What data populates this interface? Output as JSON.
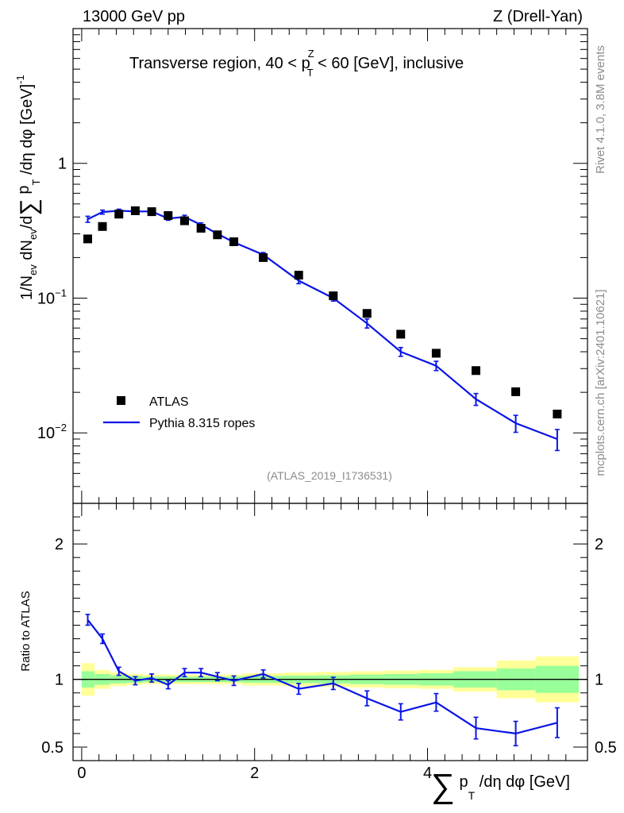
{
  "header": {
    "energy_label": "13000 GeV pp",
    "process_label": "Z (Drell-Yan)",
    "side_rivet": "Rivet 4.1.0,  3.8M events",
    "side_site": "mcplots.cern.ch [arXiv:2401.10621]",
    "analysis_ref": "(ATLAS_2019_I1736531)"
  },
  "chart_data": [
    {
      "type": "scatter",
      "title_parts": [
        "Transverse region, 40 < p",
        "Z",
        "T",
        " < 60 [GeV], inclusive"
      ],
      "ylabel_parts": [
        "1/N",
        "ev",
        " dN",
        "ev",
        "/d",
        "∑",
        " p",
        "T",
        " /dη dφ  [GeV]",
        "-1"
      ],
      "yscale": "log",
      "ylim": [
        0.003,
        10
      ],
      "xlim": [
        -0.1,
        5.85
      ],
      "y_tick_labels": [
        {
          "value": 0.01,
          "base": "10",
          "exp": "−2"
        },
        {
          "value": 0.1,
          "base": "10",
          "exp": "−1"
        },
        {
          "value": 1,
          "base": "1",
          "exp": ""
        }
      ],
      "legend": {
        "position": "bottom-left",
        "data_label": "ATLAS",
        "mc_label": "Pythia 8.315 ropes"
      },
      "series": [
        {
          "name": "ATLAS",
          "style": "markers",
          "color": "#000000",
          "x": [
            0.07,
            0.24,
            0.43,
            0.62,
            0.81,
            1.0,
            1.19,
            1.38,
            1.57,
            1.76,
            2.1,
            2.51,
            2.91,
            3.3,
            3.69,
            4.1,
            4.56,
            5.02,
            5.5
          ],
          "y": [
            0.275,
            0.34,
            0.42,
            0.445,
            0.438,
            0.41,
            0.375,
            0.33,
            0.295,
            0.262,
            0.2,
            0.148,
            0.104,
            0.077,
            0.054,
            0.039,
            0.029,
            0.0202,
            0.0138
          ]
        },
        {
          "name": "Pythia 8.315 ropes",
          "style": "line",
          "color": "#0a14e6",
          "x": [
            0.07,
            0.24,
            0.43,
            0.62,
            0.81,
            1.0,
            1.19,
            1.38,
            1.57,
            1.76,
            2.1,
            2.51,
            2.91,
            3.3,
            3.69,
            4.1,
            4.56,
            5.02,
            5.5
          ],
          "y": [
            0.385,
            0.435,
            0.445,
            0.44,
            0.44,
            0.39,
            0.4,
            0.35,
            0.3,
            0.26,
            0.21,
            0.135,
            0.1,
            0.065,
            0.04,
            0.0315,
            0.0178,
            0.0118,
            0.009
          ],
          "err_lo": [
            0.02,
            0.015,
            0.012,
            0.01,
            0.01,
            0.012,
            0.012,
            0.012,
            0.01,
            0.008,
            0.008,
            0.007,
            0.005,
            0.005,
            0.003,
            0.0025,
            0.0018,
            0.0017,
            0.0016
          ],
          "err_hi": [
            0.02,
            0.015,
            0.012,
            0.01,
            0.01,
            0.012,
            0.012,
            0.012,
            0.01,
            0.008,
            0.008,
            0.007,
            0.005,
            0.005,
            0.003,
            0.0025,
            0.0018,
            0.0017,
            0.0016
          ]
        }
      ]
    },
    {
      "type": "line",
      "ylabel": "Ratio to ATLAS",
      "xlabel_parts": [
        "∑",
        " p",
        "T",
        " /dη dφ [GeV]"
      ],
      "ylim": [
        0.4,
        2.3
      ],
      "xlim": [
        -0.1,
        5.85
      ],
      "y_tick_labels": [
        {
          "value": 0.5,
          "text": "0.5"
        },
        {
          "value": 1,
          "text": "1"
        },
        {
          "value": 2,
          "text": "2"
        }
      ],
      "x_tick_labels": [
        {
          "value": 0,
          "text": "0"
        },
        {
          "value": 2,
          "text": "2"
        },
        {
          "value": 4,
          "text": "4"
        }
      ],
      "reference_line": 1,
      "band_edges": [
        0.0,
        0.15,
        0.33,
        0.52,
        0.71,
        0.9,
        1.1,
        1.29,
        1.48,
        1.67,
        1.86,
        2.33,
        2.7,
        3.1,
        3.5,
        3.9,
        4.3,
        4.8,
        5.25,
        5.75
      ],
      "band_yellow_lo": [
        0.88,
        0.93,
        0.95,
        0.96,
        0.965,
        0.965,
        0.965,
        0.965,
        0.965,
        0.965,
        0.955,
        0.95,
        0.945,
        0.94,
        0.935,
        0.93,
        0.91,
        0.86,
        0.83
      ],
      "band_yellow_hi": [
        1.12,
        1.07,
        1.05,
        1.04,
        1.035,
        1.035,
        1.035,
        1.035,
        1.035,
        1.035,
        1.045,
        1.05,
        1.055,
        1.06,
        1.065,
        1.07,
        1.09,
        1.14,
        1.17
      ],
      "band_green_lo": [
        0.94,
        0.96,
        0.97,
        0.975,
        0.98,
        0.98,
        0.98,
        0.98,
        0.98,
        0.98,
        0.975,
        0.972,
        0.97,
        0.965,
        0.96,
        0.955,
        0.94,
        0.92,
        0.9
      ],
      "band_green_hi": [
        1.06,
        1.04,
        1.03,
        1.025,
        1.02,
        1.02,
        1.02,
        1.02,
        1.02,
        1.02,
        1.025,
        1.028,
        1.03,
        1.035,
        1.04,
        1.045,
        1.06,
        1.08,
        1.1
      ],
      "colors": {
        "yellow": "#ffff99",
        "green": "#99ff99",
        "mc": "#0a14e6"
      },
      "series": [
        {
          "name": "Pythia 8.315 ropes / ATLAS",
          "x": [
            0.07,
            0.24,
            0.43,
            0.62,
            0.81,
            1.0,
            1.19,
            1.38,
            1.57,
            1.76,
            2.1,
            2.51,
            2.91,
            3.3,
            3.69,
            4.1,
            4.56,
            5.02,
            5.5
          ],
          "y": [
            1.44,
            1.3,
            1.06,
            0.99,
            1.01,
            0.96,
            1.05,
            1.05,
            1.02,
            0.99,
            1.04,
            0.93,
            0.97,
            0.86,
            0.76,
            0.83,
            0.64,
            0.6,
            0.68
          ],
          "err": [
            0.04,
            0.035,
            0.03,
            0.03,
            0.03,
            0.03,
            0.03,
            0.03,
            0.03,
            0.035,
            0.03,
            0.04,
            0.045,
            0.055,
            0.06,
            0.065,
            0.08,
            0.09,
            0.11
          ]
        }
      ]
    }
  ]
}
